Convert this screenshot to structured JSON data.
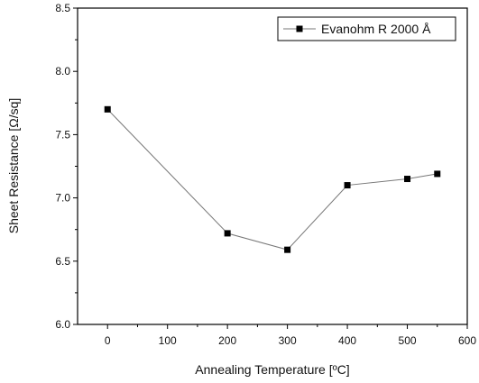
{
  "chart_data": {
    "type": "line",
    "title": "",
    "xlabel": "Annealing Temperature [ºC]",
    "ylabel": "Sheet Resistance [Ω/sq]",
    "xlim": [
      -50,
      600
    ],
    "ylim": [
      6.0,
      8.5
    ],
    "x_ticks": [
      0,
      100,
      200,
      300,
      400,
      500,
      600
    ],
    "y_ticks": [
      6.0,
      6.5,
      7.0,
      7.5,
      8.0,
      8.5
    ],
    "x_tick_labels": [
      "0",
      "100",
      "200",
      "300",
      "400",
      "500",
      "600"
    ],
    "y_tick_labels": [
      "6.0",
      "6.5",
      "7.0",
      "7.5",
      "8.0",
      "8.5"
    ],
    "grid": false,
    "legend_position": "top-right",
    "series": [
      {
        "name": "Evanohm R 2000 Å",
        "marker": "square",
        "color": "#000000",
        "line_color": "#777777",
        "x": [
          0,
          200,
          300,
          400,
          500,
          550
        ],
        "y": [
          7.7,
          6.72,
          6.59,
          7.1,
          7.15,
          7.19
        ]
      }
    ]
  }
}
